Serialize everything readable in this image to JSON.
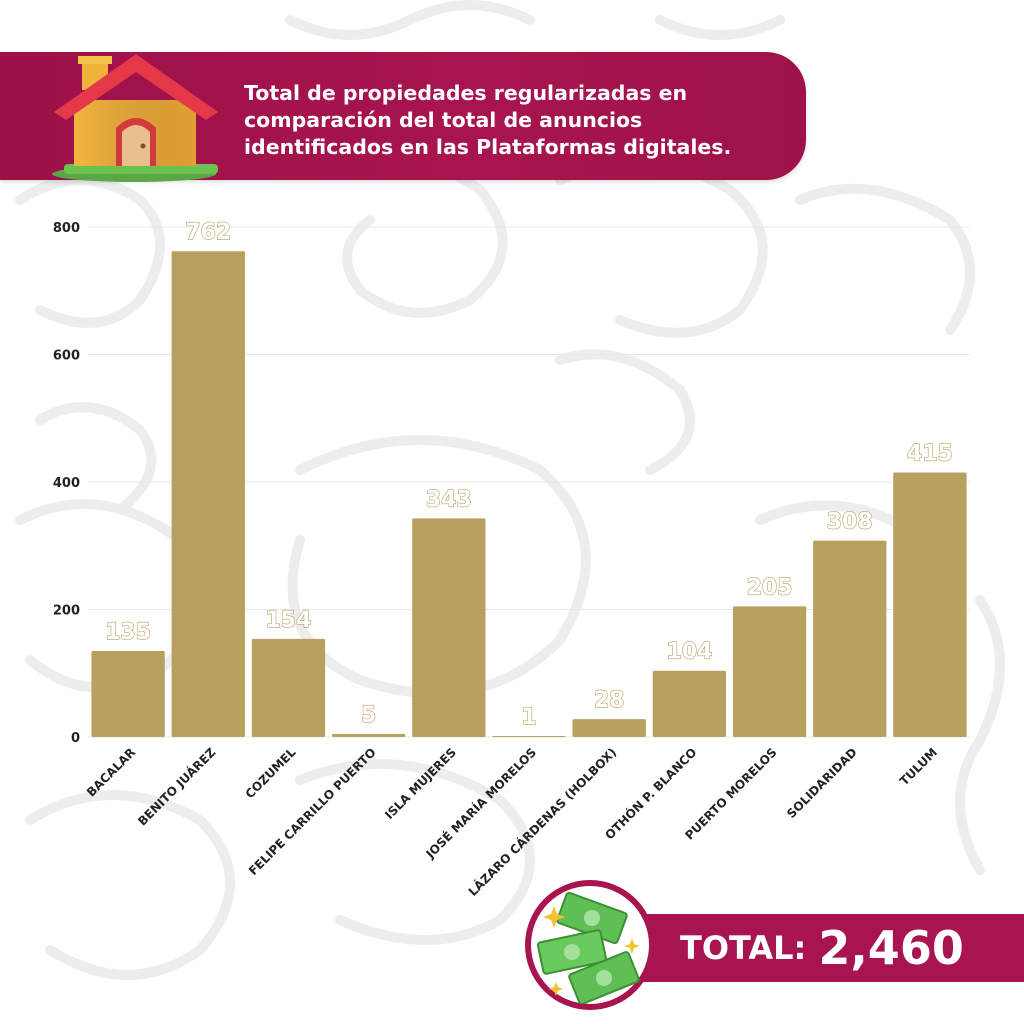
{
  "header": {
    "title": "Total de propiedades regularizadas en comparación del total de anuncios identificados en las Plataformas digitales."
  },
  "colors": {
    "bar": "#b8a160",
    "brand": "#a8144f",
    "pattern": "#ececec"
  },
  "chart_data": {
    "type": "bar",
    "categories": [
      "BACALAR",
      "BENITO JUÁREZ",
      "COZUMEL",
      "FELIPE CARRILLO PUERTO",
      "ISLA MUJERES",
      "JOSÉ MARÍA MORELOS",
      "LÁZARO CÁRDENAS (HOLBOX)",
      "OTHÓN P. BLANCO",
      "PUERTO MORELOS",
      "SOLIDARIDAD",
      "TULUM"
    ],
    "values": [
      135,
      762,
      154,
      5,
      343,
      1,
      28,
      104,
      205,
      308,
      415
    ],
    "value_labels": [
      "135",
      "762",
      "154",
      "5",
      "343",
      "1",
      "28",
      "104",
      "205",
      "308",
      "415"
    ],
    "yticks": [
      "0",
      "200",
      "400",
      "600",
      "800"
    ],
    "ylim": [
      0,
      800
    ],
    "grid": true,
    "legend": "none"
  },
  "total": {
    "label": "TOTAL:",
    "value": "2,460"
  },
  "icons": {
    "house": "house-icon",
    "money": "money-bills-icon",
    "sparkle": "sparkle-icon"
  }
}
